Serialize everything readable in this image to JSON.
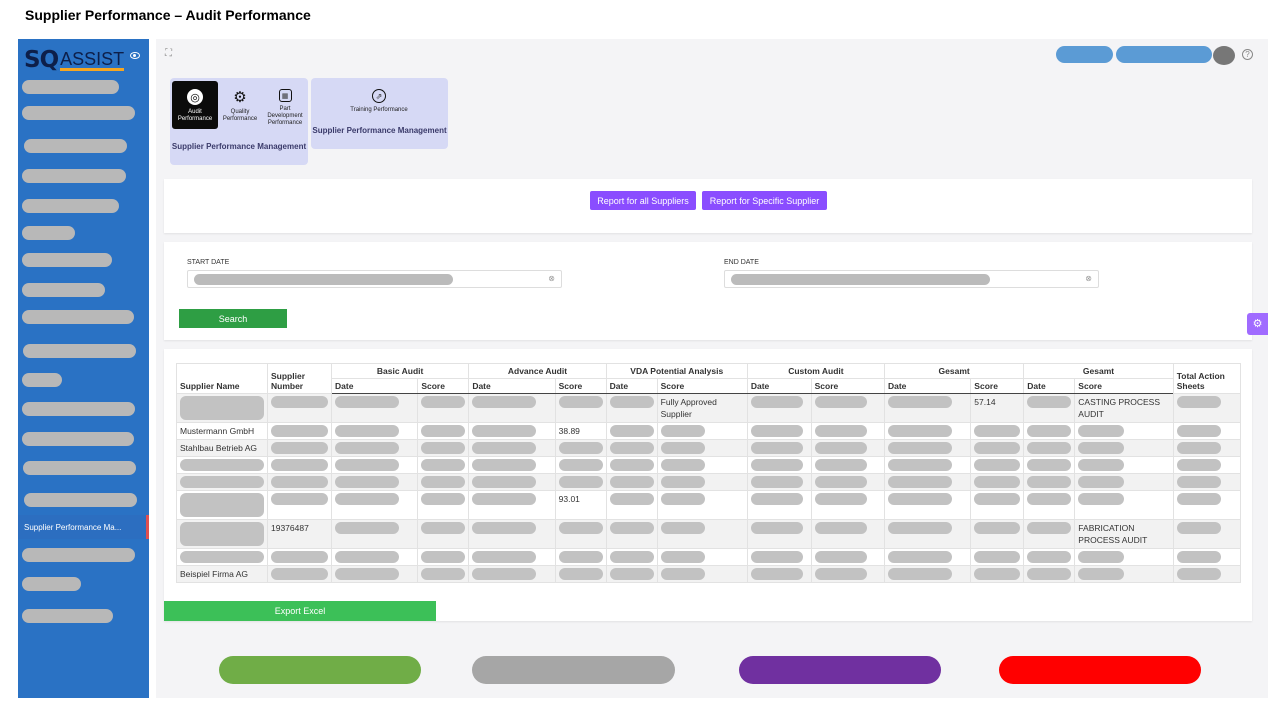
{
  "page_title": "Supplier Performance – Audit Performance",
  "logo": {
    "sq": "SQ",
    "assist": "ASSIST"
  },
  "sidebar": {
    "active_item": "Supplier Performance Ma..."
  },
  "tiles": {
    "group1": {
      "label": "Supplier Performance Management",
      "items": [
        "Audit Performance",
        "Quality Performance",
        "Part Development Performance"
      ]
    },
    "group2": {
      "label": "Supplier Performance Management",
      "items": [
        "Training Performance"
      ]
    }
  },
  "report_buttons": {
    "all": "Report for all Suppliers",
    "specific": "Report for Specific Supplier"
  },
  "filters": {
    "start_label": "START DATE",
    "end_label": "END DATE",
    "search_label": "Search"
  },
  "table": {
    "headers": {
      "supplier_name": "Supplier Name",
      "supplier_number": "Supplier Number",
      "groups": [
        "Basic Audit",
        "Advance Audit",
        "VDA Potential Analysis",
        "Custom Audit",
        "Gesamt",
        "Gesamt"
      ],
      "date": "Date",
      "score": "Score",
      "total": "Total Action Sheets"
    },
    "rows": [
      {
        "name": "",
        "number": "",
        "advance_score": "",
        "vda_score": "Fully Approved Supplier",
        "gesamt1_score": "57.14",
        "gesamt2_score": "CASTING PROCESS AUDIT"
      },
      {
        "name": "Mustermann GmbH",
        "number": "",
        "advance_score": "38.89",
        "vda_score": "",
        "gesamt1_score": "",
        "gesamt2_score": ""
      },
      {
        "name": "Stahlbau Betrieb AG",
        "number": "",
        "advance_score": "",
        "vda_score": "",
        "gesamt1_score": "",
        "gesamt2_score": ""
      },
      {
        "name": "",
        "number": "",
        "advance_score": "",
        "vda_score": "",
        "gesamt1_score": "",
        "gesamt2_score": ""
      },
      {
        "name": "",
        "number": "",
        "advance_score": "",
        "vda_score": "",
        "gesamt1_score": "",
        "gesamt2_score": ""
      },
      {
        "name": "",
        "number": "",
        "advance_score": "93.01",
        "vda_score": "",
        "gesamt1_score": "",
        "gesamt2_score": ""
      },
      {
        "name": "",
        "number": "19376487",
        "advance_score": "",
        "vda_score": "",
        "gesamt1_score": "",
        "gesamt2_score": "FABRICATION PROCESS AUDIT"
      },
      {
        "name": "",
        "number": "",
        "advance_score": "",
        "vda_score": "",
        "gesamt1_score": "",
        "gesamt2_score": ""
      },
      {
        "name": "Beispiel Firma AG",
        "number": "",
        "advance_score": "",
        "vda_score": "",
        "gesamt1_score": "",
        "gesamt2_score": ""
      }
    ]
  },
  "export_label": "Export Excel",
  "colors": {
    "sidebar": "#2a72c4",
    "purple": "#8a4dff",
    "green": "#2e9e44",
    "pill_green": "#70ad47",
    "pill_gray": "#a6a6a6",
    "pill_purple": "#7030a0",
    "pill_red": "#ff0000"
  },
  "icons": [
    "eye-icon",
    "expand-icon",
    "help-icon",
    "settings-icon",
    "audit-icon",
    "quality-gear-icon",
    "part-development-icon",
    "training-icon"
  ]
}
